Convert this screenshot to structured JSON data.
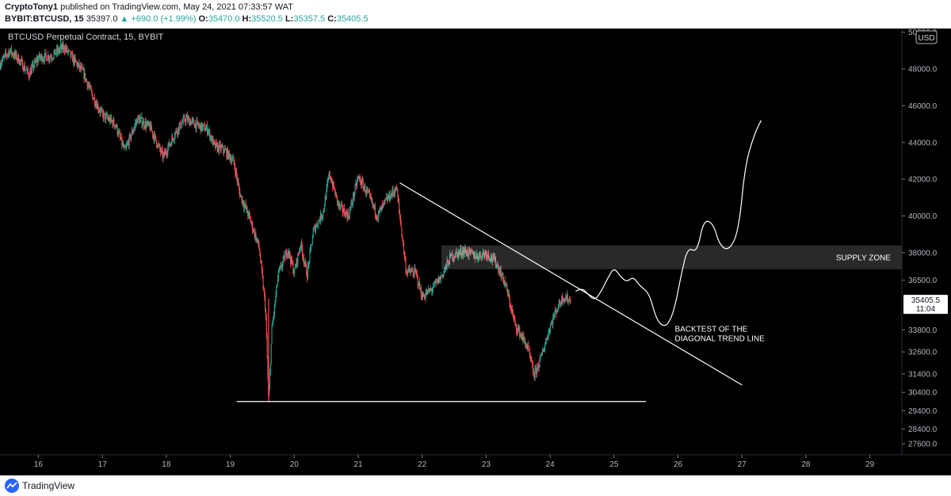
{
  "header": {
    "author": "CryptoTony1",
    "published": "published on TradingView.com, May 24, 2021 07:33:57 WAT",
    "symbol": "BYBIT:BTCUSD, 15",
    "last": "35397.0",
    "change": "▲ +690.0 (+1.99%)",
    "o_label": "O:",
    "o": "35470.0",
    "h_label": "H:",
    "h": "35520.5",
    "l_label": "L:",
    "l": "35357.5",
    "c_label": "C:",
    "c": "35405.5"
  },
  "footer": {
    "brand": "TradingView"
  },
  "colors": {
    "up": "#26a69a",
    "down": "#ef5350",
    "background": "#000000",
    "annotation": "#ffffff",
    "price_badge": "#ffffff"
  },
  "chart_data": {
    "type": "candlestick",
    "title": "BTCUSD Perpetual Contract, 15, BYBIT",
    "currency": "USD",
    "y_axis_side": "right",
    "ylim": [
      27000,
      50200
    ],
    "y_ticks": [
      "50000.0",
      "48000.0",
      "46000.0",
      "44000.0",
      "42000.0",
      "40000.0",
      "38000.0",
      "36500.0",
      "35405.5",
      "33800.0",
      "32600.0",
      "31400.0",
      "30400.0",
      "29400.0",
      "28400.0",
      "27600.0"
    ],
    "y_tick_values": [
      50000,
      48000,
      46000,
      44000,
      42000,
      40000,
      38000,
      36500,
      35405.5,
      33800,
      32600,
      31400,
      30400,
      29400,
      28400,
      27600
    ],
    "x_ticks": [
      "16",
      "17",
      "18",
      "19",
      "20",
      "21",
      "22",
      "23",
      "24",
      "25",
      "26",
      "27",
      "28",
      "29"
    ],
    "x_tick_values": [
      16,
      17,
      18,
      19,
      20,
      21,
      22,
      23,
      24,
      25,
      26,
      27,
      28,
      29
    ],
    "xlim": [
      15.4,
      29.5
    ],
    "current_price": {
      "value": 35405.5,
      "label": "35405.5",
      "timer": "11:04"
    },
    "price_path": [
      [
        15.4,
        48300
      ],
      [
        15.55,
        49000
      ],
      [
        15.7,
        48500
      ],
      [
        15.85,
        47700
      ],
      [
        16.0,
        48600
      ],
      [
        16.2,
        48700
      ],
      [
        16.4,
        49200
      ],
      [
        16.55,
        48500
      ],
      [
        16.7,
        47800
      ],
      [
        16.85,
        46500
      ],
      [
        17.0,
        45500
      ],
      [
        17.2,
        45000
      ],
      [
        17.35,
        43500
      ],
      [
        17.55,
        45300
      ],
      [
        17.75,
        44800
      ],
      [
        17.95,
        43200
      ],
      [
        18.15,
        44600
      ],
      [
        18.3,
        45300
      ],
      [
        18.5,
        44900
      ],
      [
        18.65,
        44700
      ],
      [
        18.75,
        43800
      ],
      [
        18.9,
        43600
      ],
      [
        19.05,
        43000
      ],
      [
        19.15,
        41200
      ],
      [
        19.3,
        39900
      ],
      [
        19.45,
        38300
      ],
      [
        19.55,
        35000
      ],
      [
        19.6,
        29900
      ],
      [
        19.65,
        33800
      ],
      [
        19.75,
        36800
      ],
      [
        19.9,
        38200
      ],
      [
        20.0,
        36900
      ],
      [
        20.1,
        38500
      ],
      [
        20.2,
        36800
      ],
      [
        20.3,
        39200
      ],
      [
        20.45,
        40200
      ],
      [
        20.55,
        42300
      ],
      [
        20.7,
        40500
      ],
      [
        20.85,
        40000
      ],
      [
        21.0,
        42100
      ],
      [
        21.15,
        41200
      ],
      [
        21.3,
        40000
      ],
      [
        21.45,
        40900
      ],
      [
        21.6,
        41500
      ],
      [
        21.75,
        37000
      ],
      [
        21.9,
        36900
      ],
      [
        22.0,
        35600
      ],
      [
        22.15,
        36000
      ],
      [
        22.3,
        36700
      ],
      [
        22.45,
        37800
      ],
      [
        22.65,
        38100
      ],
      [
        22.85,
        37800
      ],
      [
        23.0,
        38000
      ],
      [
        23.15,
        37500
      ],
      [
        23.3,
        36300
      ],
      [
        23.45,
        34100
      ],
      [
        23.55,
        33500
      ],
      [
        23.65,
        32800
      ],
      [
        23.75,
        31300
      ],
      [
        23.85,
        32200
      ],
      [
        24.0,
        34000
      ],
      [
        24.1,
        34900
      ],
      [
        24.2,
        35600
      ],
      [
        24.32,
        35400
      ]
    ],
    "annotations": [
      {
        "type": "horizontal_line",
        "label": "support",
        "price": 29900,
        "x_start": 19.1,
        "x_end": 25.5
      },
      {
        "type": "trend_line",
        "label": "diagonal trend line",
        "points": [
          [
            21.65,
            41800
          ],
          [
            27.0,
            30800
          ]
        ]
      },
      {
        "type": "zone",
        "label": "SUPPLY ZONE",
        "price_top": 38400,
        "price_bottom": 37100,
        "x_start": 22.3,
        "x_end": 29.5
      },
      {
        "type": "projection",
        "label": "projection",
        "points": [
          [
            24.4,
            35900
          ],
          [
            24.5,
            36100
          ],
          [
            24.6,
            35700
          ],
          [
            24.7,
            35400
          ],
          [
            24.8,
            35900
          ],
          [
            24.9,
            36600
          ],
          [
            25.0,
            37200
          ],
          [
            25.1,
            36700
          ],
          [
            25.2,
            36400
          ],
          [
            25.3,
            36700
          ],
          [
            25.4,
            36200
          ],
          [
            25.55,
            35800
          ],
          [
            25.65,
            34500
          ],
          [
            25.75,
            34000
          ],
          [
            25.85,
            34100
          ],
          [
            25.95,
            35000
          ],
          [
            26.05,
            36800
          ],
          [
            26.15,
            38300
          ],
          [
            26.3,
            38000
          ],
          [
            26.4,
            39800
          ],
          [
            26.55,
            39600
          ],
          [
            26.65,
            38400
          ],
          [
            26.8,
            38100
          ],
          [
            26.95,
            39200
          ],
          [
            27.05,
            42800
          ],
          [
            27.2,
            44500
          ],
          [
            27.3,
            45200
          ]
        ]
      }
    ],
    "annotation_text": [
      "BACKTEST OF THE",
      "DIAGONAL TREND LINE"
    ],
    "annotation_at": [
      25.95,
      33700
    ]
  }
}
